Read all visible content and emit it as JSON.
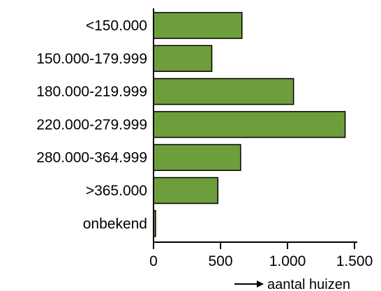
{
  "chart_data": {
    "type": "bar",
    "orientation": "horizontal",
    "categories": [
      "<150.000",
      "150.000-179.999",
      "180.000-219.999",
      "220.000-279.999",
      "280.000-364.999",
      ">365.000",
      "onbekend"
    ],
    "values": [
      660,
      435,
      1045,
      1430,
      650,
      480,
      15
    ],
    "xlabel": "aantal huizen",
    "ylabel": "",
    "xlim": [
      0,
      1500
    ],
    "xticks": [
      0,
      500,
      1000,
      1500
    ],
    "xtick_labels": [
      "0",
      "500",
      "1.000",
      "1.500"
    ],
    "bar_color": "#6e9e3c",
    "grid": false
  }
}
